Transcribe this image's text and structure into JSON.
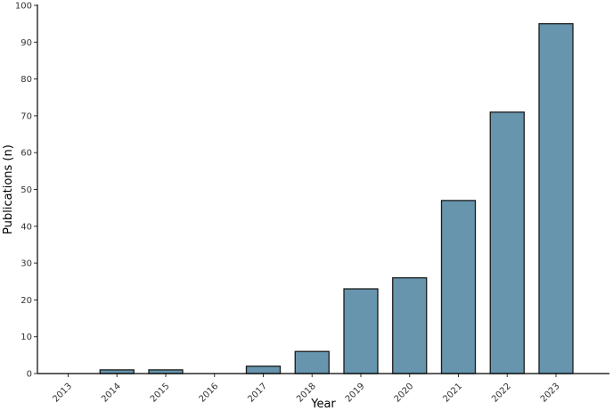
{
  "chart_data": {
    "type": "bar",
    "categories": [
      "2013",
      "2014",
      "2015",
      "2016",
      "2017",
      "2018",
      "2019",
      "2020",
      "2021",
      "2022",
      "2023"
    ],
    "values": [
      0,
      1,
      1,
      0,
      2,
      6,
      23,
      26,
      47,
      71,
      95
    ],
    "xlabel": "Year",
    "ylabel": "Publications (n)",
    "ylim": [
      0,
      100
    ],
    "yticks": [
      "0",
      "10",
      "20",
      "30",
      "40",
      "50",
      "60",
      "70",
      "80",
      "90",
      "100"
    ],
    "grid": false,
    "legend": "none",
    "bar_color": "#6695ad",
    "bar_edge_color": "#1a1a1a"
  }
}
